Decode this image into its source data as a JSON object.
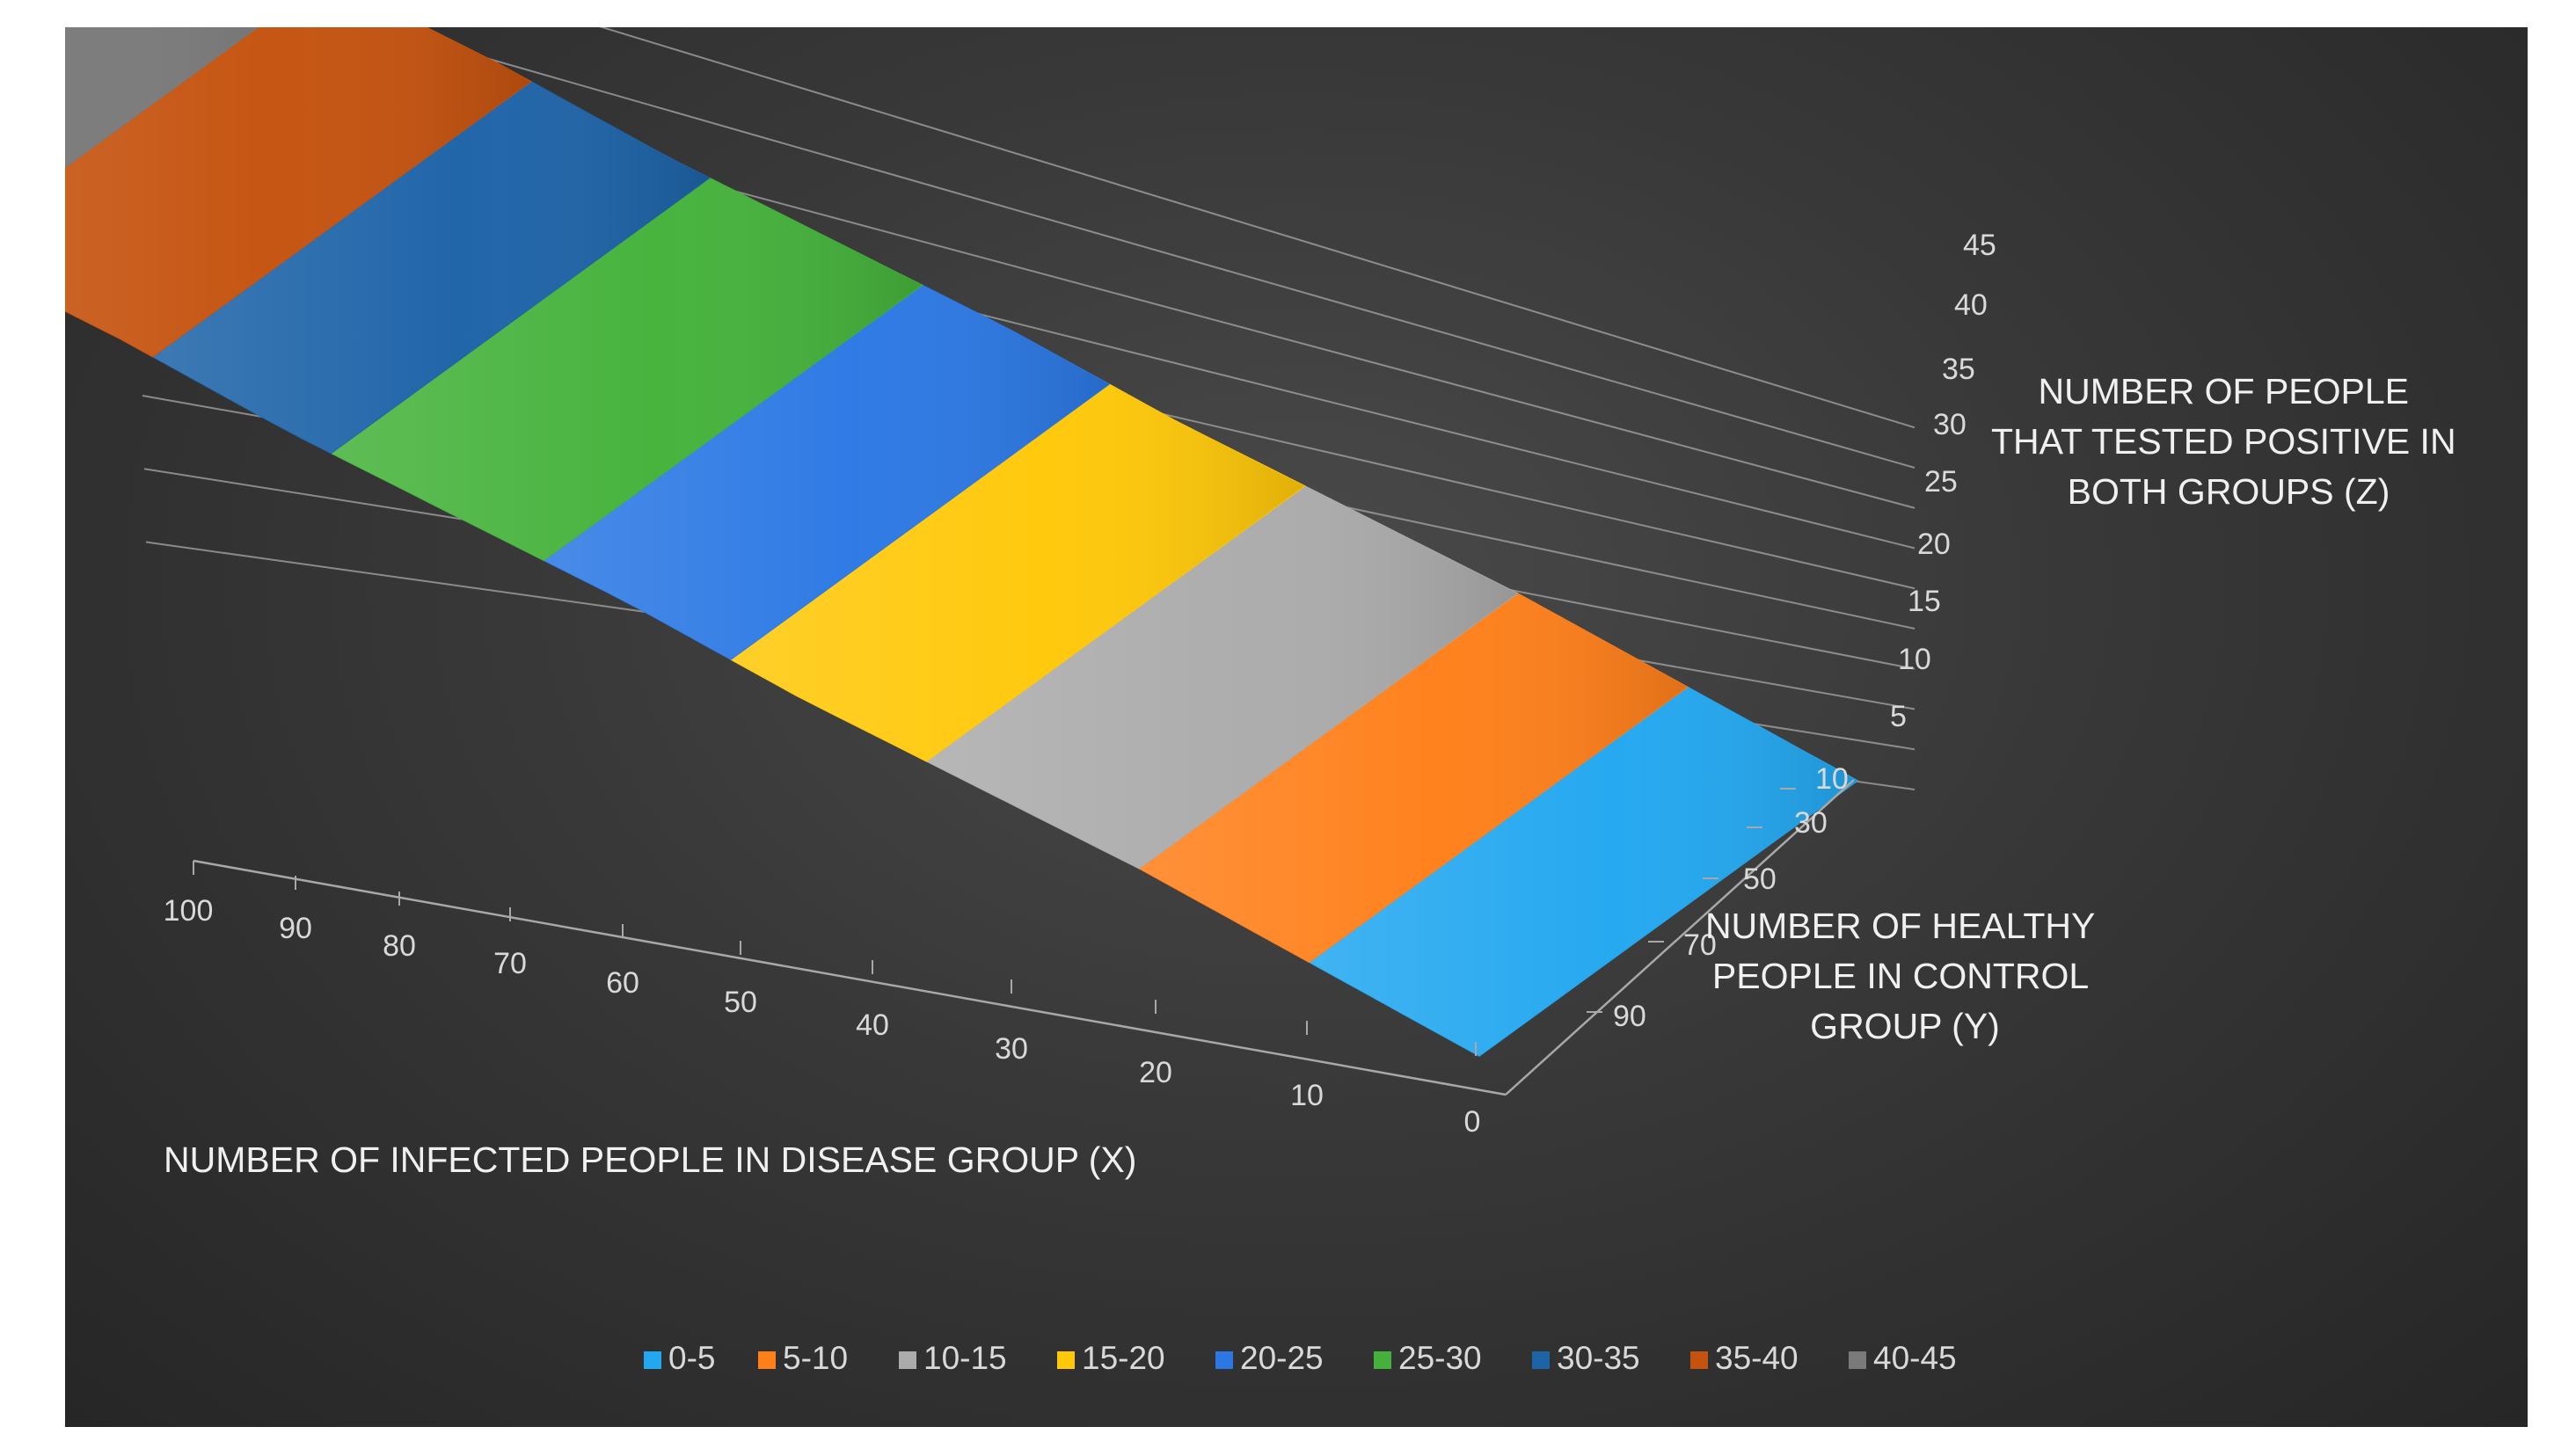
{
  "chart_data": {
    "type": "surface",
    "x_axis": {
      "title": "NUMBER OF INFECTED PEOPLE IN DISEASE GROUP (X)",
      "ticks": [
        "100",
        "90",
        "80",
        "70",
        "60",
        "50",
        "40",
        "30",
        "20",
        "10",
        "0"
      ],
      "range": [
        0,
        100
      ]
    },
    "y_axis": {
      "title_lines": [
        "NUMBER OF HEALTHY",
        "PEOPLE IN CONTROL",
        "GROUP (Y)"
      ],
      "ticks": [
        "10",
        "30",
        "50",
        "70",
        "90"
      ],
      "range": [
        10,
        100
      ]
    },
    "z_axis": {
      "title_lines": [
        "NUMBER OF PEOPLE",
        "THAT TESTED POSITIVE IN",
        "BOTH GROUPS (Z)"
      ],
      "ticks": [
        "5",
        "10",
        "15",
        "20",
        "25",
        "30",
        "35",
        "40",
        "45"
      ],
      "range": [
        0,
        45
      ]
    },
    "surface": {
      "description_rule": "Z increases as X increases; approximately constant along Y",
      "x": [
        0,
        10,
        20,
        30,
        40,
        50,
        60,
        70,
        80,
        90,
        100
      ],
      "z": [
        0,
        5,
        10,
        14,
        18,
        23,
        27,
        31,
        36,
        40,
        45
      ]
    },
    "bands": [
      {
        "label": "0-5",
        "color": "#22a7f0"
      },
      {
        "label": "5-10",
        "color": "#ff7f19"
      },
      {
        "label": "10-15",
        "color": "#ababab"
      },
      {
        "label": "15-20",
        "color": "#ffc808"
      },
      {
        "label": "20-25",
        "color": "#2b78e4"
      },
      {
        "label": "25-30",
        "color": "#44b23a"
      },
      {
        "label": "30-35",
        "color": "#1d63a8"
      },
      {
        "label": "35-40",
        "color": "#c5520e"
      },
      {
        "label": "40-45",
        "color": "#7a7a7a"
      }
    ],
    "legend_position": "bottom"
  }
}
